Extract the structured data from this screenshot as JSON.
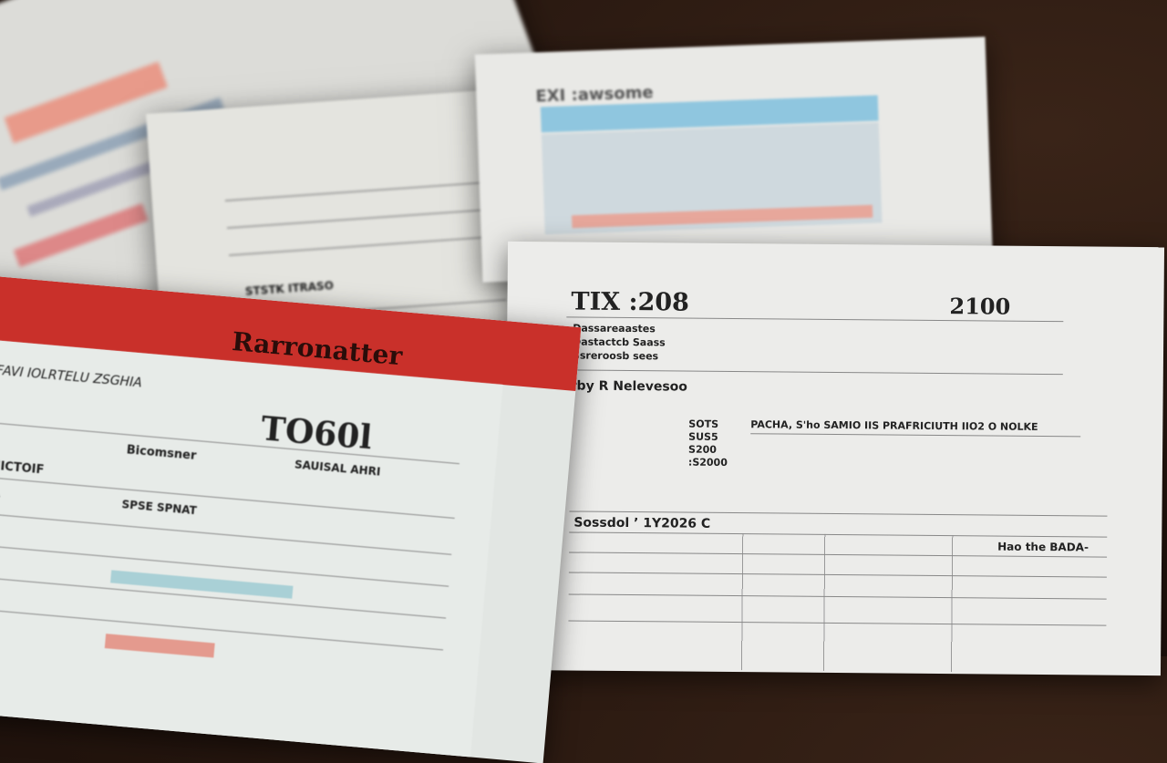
{
  "scene": {
    "description_colors": {
      "table": "#24150e",
      "paper": "#e9e9e6",
      "red_band": "#c9302a",
      "blue_band": "#8fc6df"
    }
  },
  "front_form": {
    "header": "Rarronatter",
    "code": "TO60l",
    "lines": [
      "FAVI IOLRTELU ZSGHIA",
      "Bicomsner",
      "SAUISAL AHRI",
      "TIICTOIF",
      "SPSE SPNAT",
      "FA"
    ]
  },
  "right_form": {
    "title": "TIX :208",
    "year": "2100",
    "subheading": "rby R Nelevesoo",
    "rows": [
      "Dassareaastes",
      "Dastactcb Saass",
      "Ssreroosb sees",
      "PACHA, S'ho SAMIO IIS PRAFRICIUTH IIO2 O NOLKE"
    ],
    "amounts": [
      "SOTS",
      "SUS5",
      "S200",
      ":S2000"
    ],
    "field": "Sossdol  ’ 1Y2026 C",
    "right_label": "Hao the BADA-"
  },
  "back_form": {
    "title": "EXI :awsome",
    "label": "STSTK ITRASO"
  }
}
